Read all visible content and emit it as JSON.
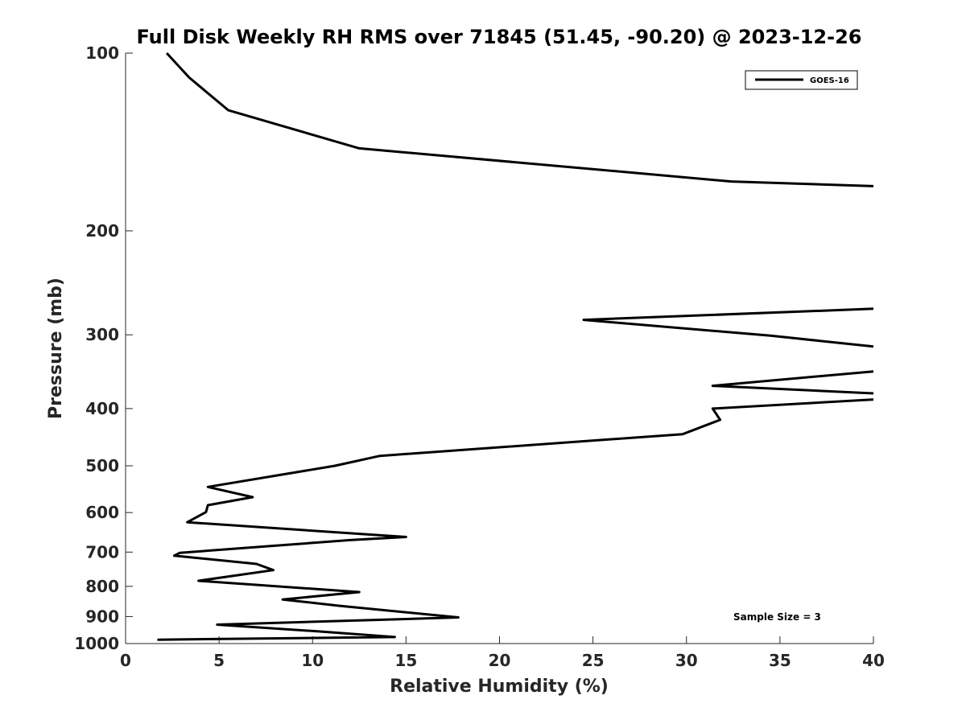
{
  "chart_data": {
    "type": "line",
    "title": "Full Disk Weekly RH RMS over 71845 (51.45, -90.20) @ 2023-12-26",
    "xlabel": "Relative Humidity (%)",
    "ylabel": "Pressure (mb)",
    "xlim": [
      0,
      40
    ],
    "ylim": [
      100,
      1000
    ],
    "yscale": "log",
    "y_reversed": true,
    "x_ticks": [
      0,
      5,
      10,
      15,
      20,
      25,
      30,
      35,
      40
    ],
    "y_ticks": [
      100,
      200,
      300,
      400,
      500,
      600,
      700,
      800,
      900,
      1000
    ],
    "grid": false,
    "legend_position": "top-right",
    "series": [
      {
        "name": "GOES-16",
        "color": "#000000",
        "x": [
          2.2,
          3.4,
          5.5,
          12.5,
          32.4,
          40,
          null,
          40,
          24.5,
          34.5,
          40,
          null,
          40,
          31.4,
          40,
          null,
          40,
          31.4,
          31.8,
          29.8,
          13.6,
          11.2,
          4.4,
          6.8,
          4.4,
          4.3,
          3.3,
          15.0,
          12.0,
          7.9,
          2.9,
          2.6,
          7.0,
          7.9,
          3.9,
          12.5,
          8.4,
          11.4,
          17.8,
          4.9,
          10.4,
          14.4,
          1.7
        ],
        "y": [
          100,
          110,
          125,
          145,
          165,
          168,
          null,
          271,
          283,
          301,
          314,
          null,
          346,
          366,
          377,
          null,
          386,
          400,
          418,
          442,
          481,
          500,
          543,
          565,
          583,
          599,
          623,
          660,
          668,
          683,
          702,
          710,
          733,
          751,
          783,
          818,
          842,
          863,
          903,
          929,
          954,
          975,
          985
        ]
      }
    ],
    "annotations": [
      "Sample Size = 3"
    ]
  }
}
